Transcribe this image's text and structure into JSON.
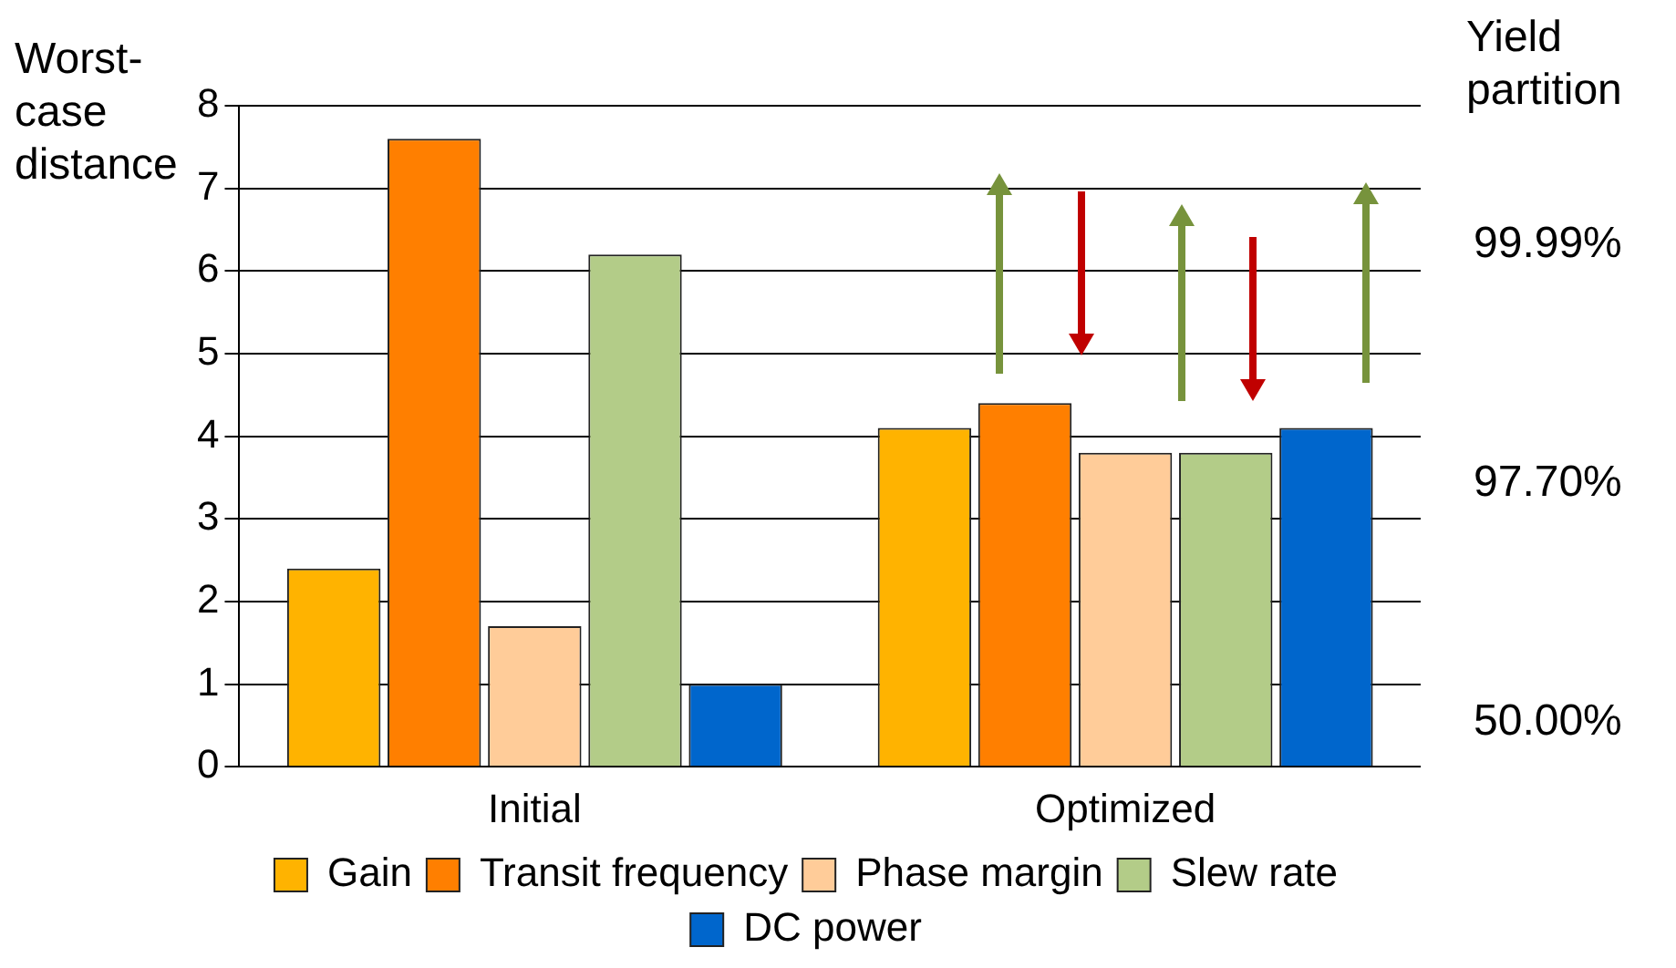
{
  "chart_data": {
    "type": "bar",
    "ylabel": "Worst-case distance",
    "y2label": "Yield partition",
    "categories": [
      "Initial",
      "Optimized"
    ],
    "series": [
      {
        "name": "Gain",
        "color": "#ffb300",
        "values": [
          2.4,
          4.1
        ]
      },
      {
        "name": "Transit frequency",
        "color": "#ff7f00",
        "values": [
          7.6,
          4.4
        ]
      },
      {
        "name": "Phase margin",
        "color": "#ffcc99",
        "values": [
          1.7,
          3.8
        ]
      },
      {
        "name": "Slew rate",
        "color": "#b3cc88",
        "values": [
          6.2,
          3.8
        ]
      },
      {
        "name": "DC power",
        "color": "#0066cc",
        "values": [
          1.0,
          4.1
        ]
      }
    ],
    "ylim": [
      0,
      8
    ],
    "yticks": [
      0,
      1,
      2,
      3,
      4,
      5,
      6,
      7,
      8
    ],
    "annotations": [
      "99.99%",
      "97.70%",
      "50.00%"
    ],
    "grid": "y",
    "legend": "bottom"
  }
}
